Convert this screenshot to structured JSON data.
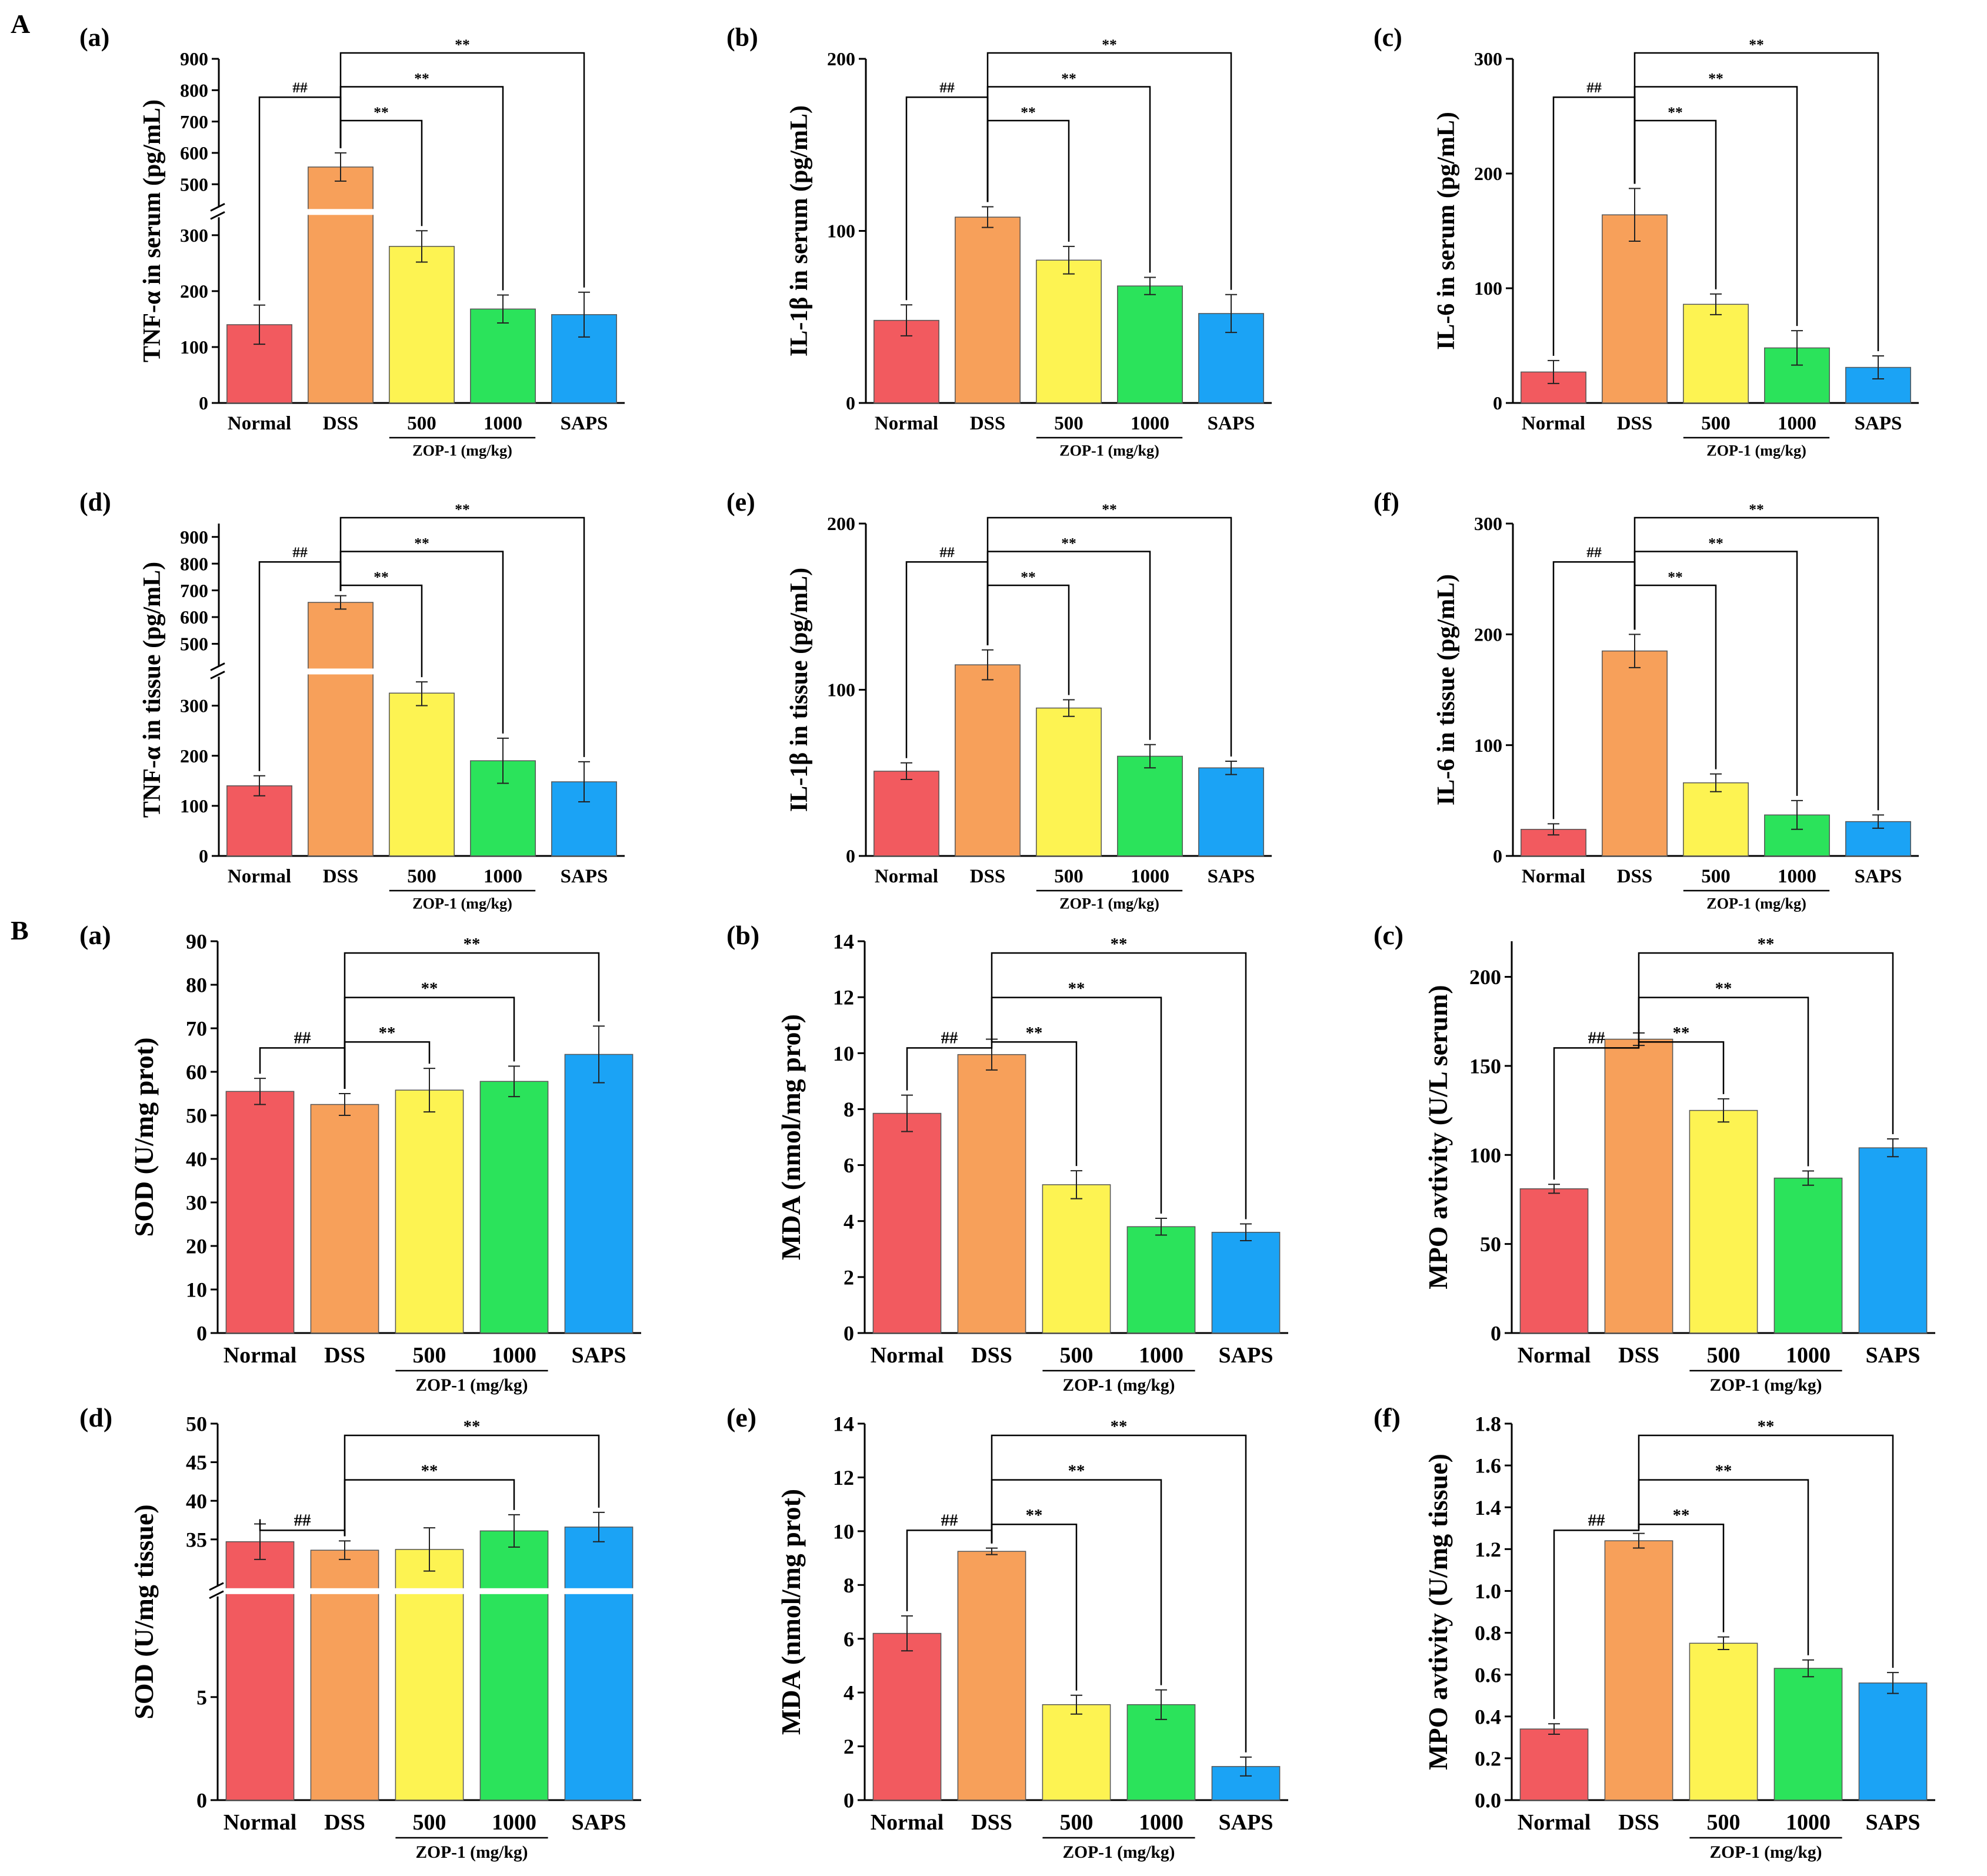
{
  "figure": {
    "section_labels": [
      "A",
      "B"
    ],
    "colors": {
      "normal": "#F25A5F",
      "dss": "#F7A05A",
      "zop500": "#FDF352",
      "zop1000": "#2BE35B",
      "saps": "#1BA3F5"
    },
    "group_label": "ZOP-1 (mg/kg)"
  },
  "chart_data": [
    {
      "id": "A-a",
      "panel": "(a)",
      "type": "bar",
      "ylabel": "TNF-α in serum (pg/mL)",
      "categories": [
        "Normal",
        "DSS",
        "500",
        "1000",
        "SAPS"
      ],
      "values": [
        140,
        555,
        280,
        168,
        158
      ],
      "errors": [
        35,
        45,
        28,
        25,
        40
      ],
      "axis_break": {
        "low": [
          0,
          320
        ],
        "high": [
          450,
          900
        ]
      },
      "yticks": [
        0,
        100,
        200,
        300,
        500,
        600,
        700,
        800,
        900
      ],
      "annotations": [
        {
          "from": 0,
          "to": 1,
          "label": "##"
        },
        {
          "from": 1,
          "to": 2,
          "label": "**"
        },
        {
          "from": 1,
          "to": 3,
          "label": "**"
        },
        {
          "from": 1,
          "to": 4,
          "label": "**"
        }
      ]
    },
    {
      "id": "A-b",
      "panel": "(b)",
      "type": "bar",
      "ylabel": "IL-1β in serum (pg/mL)",
      "categories": [
        "Normal",
        "DSS",
        "500",
        "1000",
        "SAPS"
      ],
      "values": [
        48,
        108,
        83,
        68,
        52
      ],
      "errors": [
        9,
        6,
        8,
        5,
        11
      ],
      "ylim": [
        0,
        200
      ],
      "yticks": [
        0,
        100,
        200
      ],
      "annotations": [
        {
          "from": 0,
          "to": 1,
          "label": "##"
        },
        {
          "from": 1,
          "to": 2,
          "label": "**"
        },
        {
          "from": 1,
          "to": 3,
          "label": "**"
        },
        {
          "from": 1,
          "to": 4,
          "label": "**"
        }
      ]
    },
    {
      "id": "A-c",
      "panel": "(c)",
      "type": "bar",
      "ylabel": "IL-6 in serum (pg/mL)",
      "categories": [
        "Normal",
        "DSS",
        "500",
        "1000",
        "SAPS"
      ],
      "values": [
        27,
        164,
        86,
        48,
        31
      ],
      "errors": [
        10,
        23,
        9,
        15,
        10
      ],
      "ylim": [
        0,
        300
      ],
      "yticks": [
        0,
        100,
        200,
        300
      ],
      "annotations": [
        {
          "from": 0,
          "to": 1,
          "label": "##"
        },
        {
          "from": 1,
          "to": 2,
          "label": "**"
        },
        {
          "from": 1,
          "to": 3,
          "label": "**"
        },
        {
          "from": 1,
          "to": 4,
          "label": "**"
        }
      ]
    },
    {
      "id": "A-d",
      "panel": "(d)",
      "type": "bar",
      "ylabel": "TNF-α in tissue (pg/mL)",
      "categories": [
        "Normal",
        "DSS",
        "500",
        "1000",
        "SAPS"
      ],
      "values": [
        140,
        655,
        325,
        190,
        148
      ],
      "errors": [
        20,
        25,
        25,
        45,
        40
      ],
      "axis_break": {
        "low": [
          0,
          345
        ],
        "high": [
          440,
          950
        ]
      },
      "yticks": [
        0,
        100,
        200,
        300,
        500,
        600,
        700,
        800,
        900
      ],
      "annotations": [
        {
          "from": 0,
          "to": 1,
          "label": "##"
        },
        {
          "from": 1,
          "to": 2,
          "label": "**"
        },
        {
          "from": 1,
          "to": 3,
          "label": "**"
        },
        {
          "from": 1,
          "to": 4,
          "label": "**"
        }
      ]
    },
    {
      "id": "A-e",
      "panel": "(e)",
      "type": "bar",
      "ylabel": "IL-1β in tissue (pg/mL)",
      "categories": [
        "Normal",
        "DSS",
        "500",
        "1000",
        "SAPS"
      ],
      "values": [
        51,
        115,
        89,
        60,
        53
      ],
      "errors": [
        5,
        9,
        5,
        7,
        4
      ],
      "ylim": [
        0,
        200
      ],
      "yticks": [
        0,
        100,
        200
      ],
      "annotations": [
        {
          "from": 0,
          "to": 1,
          "label": "##"
        },
        {
          "from": 1,
          "to": 2,
          "label": "**"
        },
        {
          "from": 1,
          "to": 3,
          "label": "**"
        },
        {
          "from": 1,
          "to": 4,
          "label": "**"
        }
      ]
    },
    {
      "id": "A-f",
      "panel": "(f)",
      "type": "bar",
      "ylabel": "IL-6 in tissue (pg/mL)",
      "categories": [
        "Normal",
        "DSS",
        "500",
        "1000",
        "SAPS"
      ],
      "values": [
        24,
        185,
        66,
        37,
        31
      ],
      "errors": [
        5,
        15,
        8,
        13,
        6
      ],
      "ylim": [
        0,
        300
      ],
      "yticks": [
        0,
        100,
        200,
        300
      ],
      "annotations": [
        {
          "from": 0,
          "to": 1,
          "label": "##"
        },
        {
          "from": 1,
          "to": 2,
          "label": "**"
        },
        {
          "from": 1,
          "to": 3,
          "label": "**"
        },
        {
          "from": 1,
          "to": 4,
          "label": "**"
        }
      ]
    },
    {
      "id": "B-a",
      "panel": "(a)",
      "type": "bar",
      "ylabel": "SOD (U/mg prot)",
      "categories": [
        "Normal",
        "DSS",
        "500",
        "1000",
        "SAPS"
      ],
      "values": [
        55.5,
        52.5,
        55.8,
        57.8,
        64
      ],
      "errors": [
        3,
        2.5,
        5,
        3.5,
        6.5
      ],
      "ylim": [
        0,
        90
      ],
      "yticks": [
        0,
        10,
        20,
        30,
        40,
        50,
        60,
        70,
        80,
        90
      ],
      "annotations": [
        {
          "from": 0,
          "to": 1,
          "label": "##"
        },
        {
          "from": 1,
          "to": 2,
          "label": "**"
        },
        {
          "from": 1,
          "to": 3,
          "label": "**"
        },
        {
          "from": 1,
          "to": 4,
          "label": "**"
        }
      ]
    },
    {
      "id": "B-b",
      "panel": "(b)",
      "type": "bar",
      "ylabel": "MDA (nmol/mg prot)",
      "categories": [
        "Normal",
        "DSS",
        "500",
        "1000",
        "SAPS"
      ],
      "values": [
        7.85,
        9.95,
        5.3,
        3.8,
        3.6
      ],
      "errors": [
        0.65,
        0.55,
        0.5,
        0.3,
        0.3
      ],
      "ylim": [
        0,
        14
      ],
      "yticks": [
        0,
        2,
        4,
        6,
        8,
        10,
        12,
        14
      ],
      "annotations": [
        {
          "from": 0,
          "to": 1,
          "label": "##"
        },
        {
          "from": 1,
          "to": 2,
          "label": "**"
        },
        {
          "from": 1,
          "to": 3,
          "label": "**"
        },
        {
          "from": 1,
          "to": 4,
          "label": "**"
        }
      ]
    },
    {
      "id": "B-c",
      "panel": "(c)",
      "type": "bar",
      "ylabel": "MPO avtivity (U/L serum)",
      "categories": [
        "Normal",
        "DSS",
        "500",
        "1000",
        "SAPS"
      ],
      "values": [
        81,
        165,
        125,
        87,
        104
      ],
      "errors": [
        2.5,
        3.5,
        6.5,
        4,
        5
      ],
      "ylim": [
        0,
        220
      ],
      "yticks": [
        0,
        50,
        100,
        150,
        200
      ],
      "annotations": [
        {
          "from": 0,
          "to": 1,
          "label": "##"
        },
        {
          "from": 1,
          "to": 2,
          "label": "**"
        },
        {
          "from": 1,
          "to": 3,
          "label": "**"
        },
        {
          "from": 1,
          "to": 4,
          "label": "**"
        }
      ]
    },
    {
      "id": "B-d",
      "panel": "(d)",
      "type": "bar",
      "ylabel": "SOD (U/mg tissue)",
      "categories": [
        "Normal",
        "DSS",
        "500",
        "1000",
        "SAPS"
      ],
      "values": [
        34.7,
        33.6,
        33.7,
        36.1,
        36.6
      ],
      "errors": [
        2.3,
        1.2,
        2.8,
        2.1,
        1.9
      ],
      "axis_break": {
        "low": [
          0,
          9.5
        ],
        "high": [
          30,
          50
        ]
      },
      "yticks": [
        0,
        5,
        35,
        40,
        45,
        50
      ],
      "annotations": [
        {
          "from": 0,
          "to": 1,
          "label": "##"
        },
        {
          "from": 1,
          "to": 3,
          "label": "**"
        },
        {
          "from": 1,
          "to": 4,
          "label": "**"
        }
      ]
    },
    {
      "id": "B-e",
      "panel": "(e)",
      "type": "bar",
      "ylabel": "MDA (nmol/mg prot)",
      "categories": [
        "Normal",
        "DSS",
        "500",
        "1000",
        "SAPS"
      ],
      "values": [
        6.2,
        9.25,
        3.55,
        3.55,
        1.25
      ],
      "errors": [
        0.65,
        0.12,
        0.35,
        0.55,
        0.35
      ],
      "ylim": [
        0,
        14
      ],
      "yticks": [
        0,
        2,
        4,
        6,
        8,
        10,
        12,
        14
      ],
      "annotations": [
        {
          "from": 0,
          "to": 1,
          "label": "##"
        },
        {
          "from": 1,
          "to": 2,
          "label": "**"
        },
        {
          "from": 1,
          "to": 3,
          "label": "**"
        },
        {
          "from": 1,
          "to": 4,
          "label": "**"
        }
      ]
    },
    {
      "id": "B-f",
      "panel": "(f)",
      "type": "bar",
      "ylabel": "MPO avtivity (U/mg tissue)",
      "categories": [
        "Normal",
        "DSS",
        "500",
        "1000",
        "SAPS"
      ],
      "values": [
        0.34,
        1.24,
        0.75,
        0.63,
        0.56
      ],
      "errors": [
        0.025,
        0.035,
        0.03,
        0.04,
        0.05
      ],
      "ylim": [
        0,
        1.8
      ],
      "yticks": [
        0.0,
        0.2,
        0.4,
        0.6,
        0.8,
        1.0,
        1.2,
        1.4,
        1.6,
        1.8
      ],
      "decimals": 1,
      "annotations": [
        {
          "from": 0,
          "to": 1,
          "label": "##"
        },
        {
          "from": 1,
          "to": 2,
          "label": "**"
        },
        {
          "from": 1,
          "to": 3,
          "label": "**"
        },
        {
          "from": 1,
          "to": 4,
          "label": "**"
        }
      ]
    }
  ]
}
